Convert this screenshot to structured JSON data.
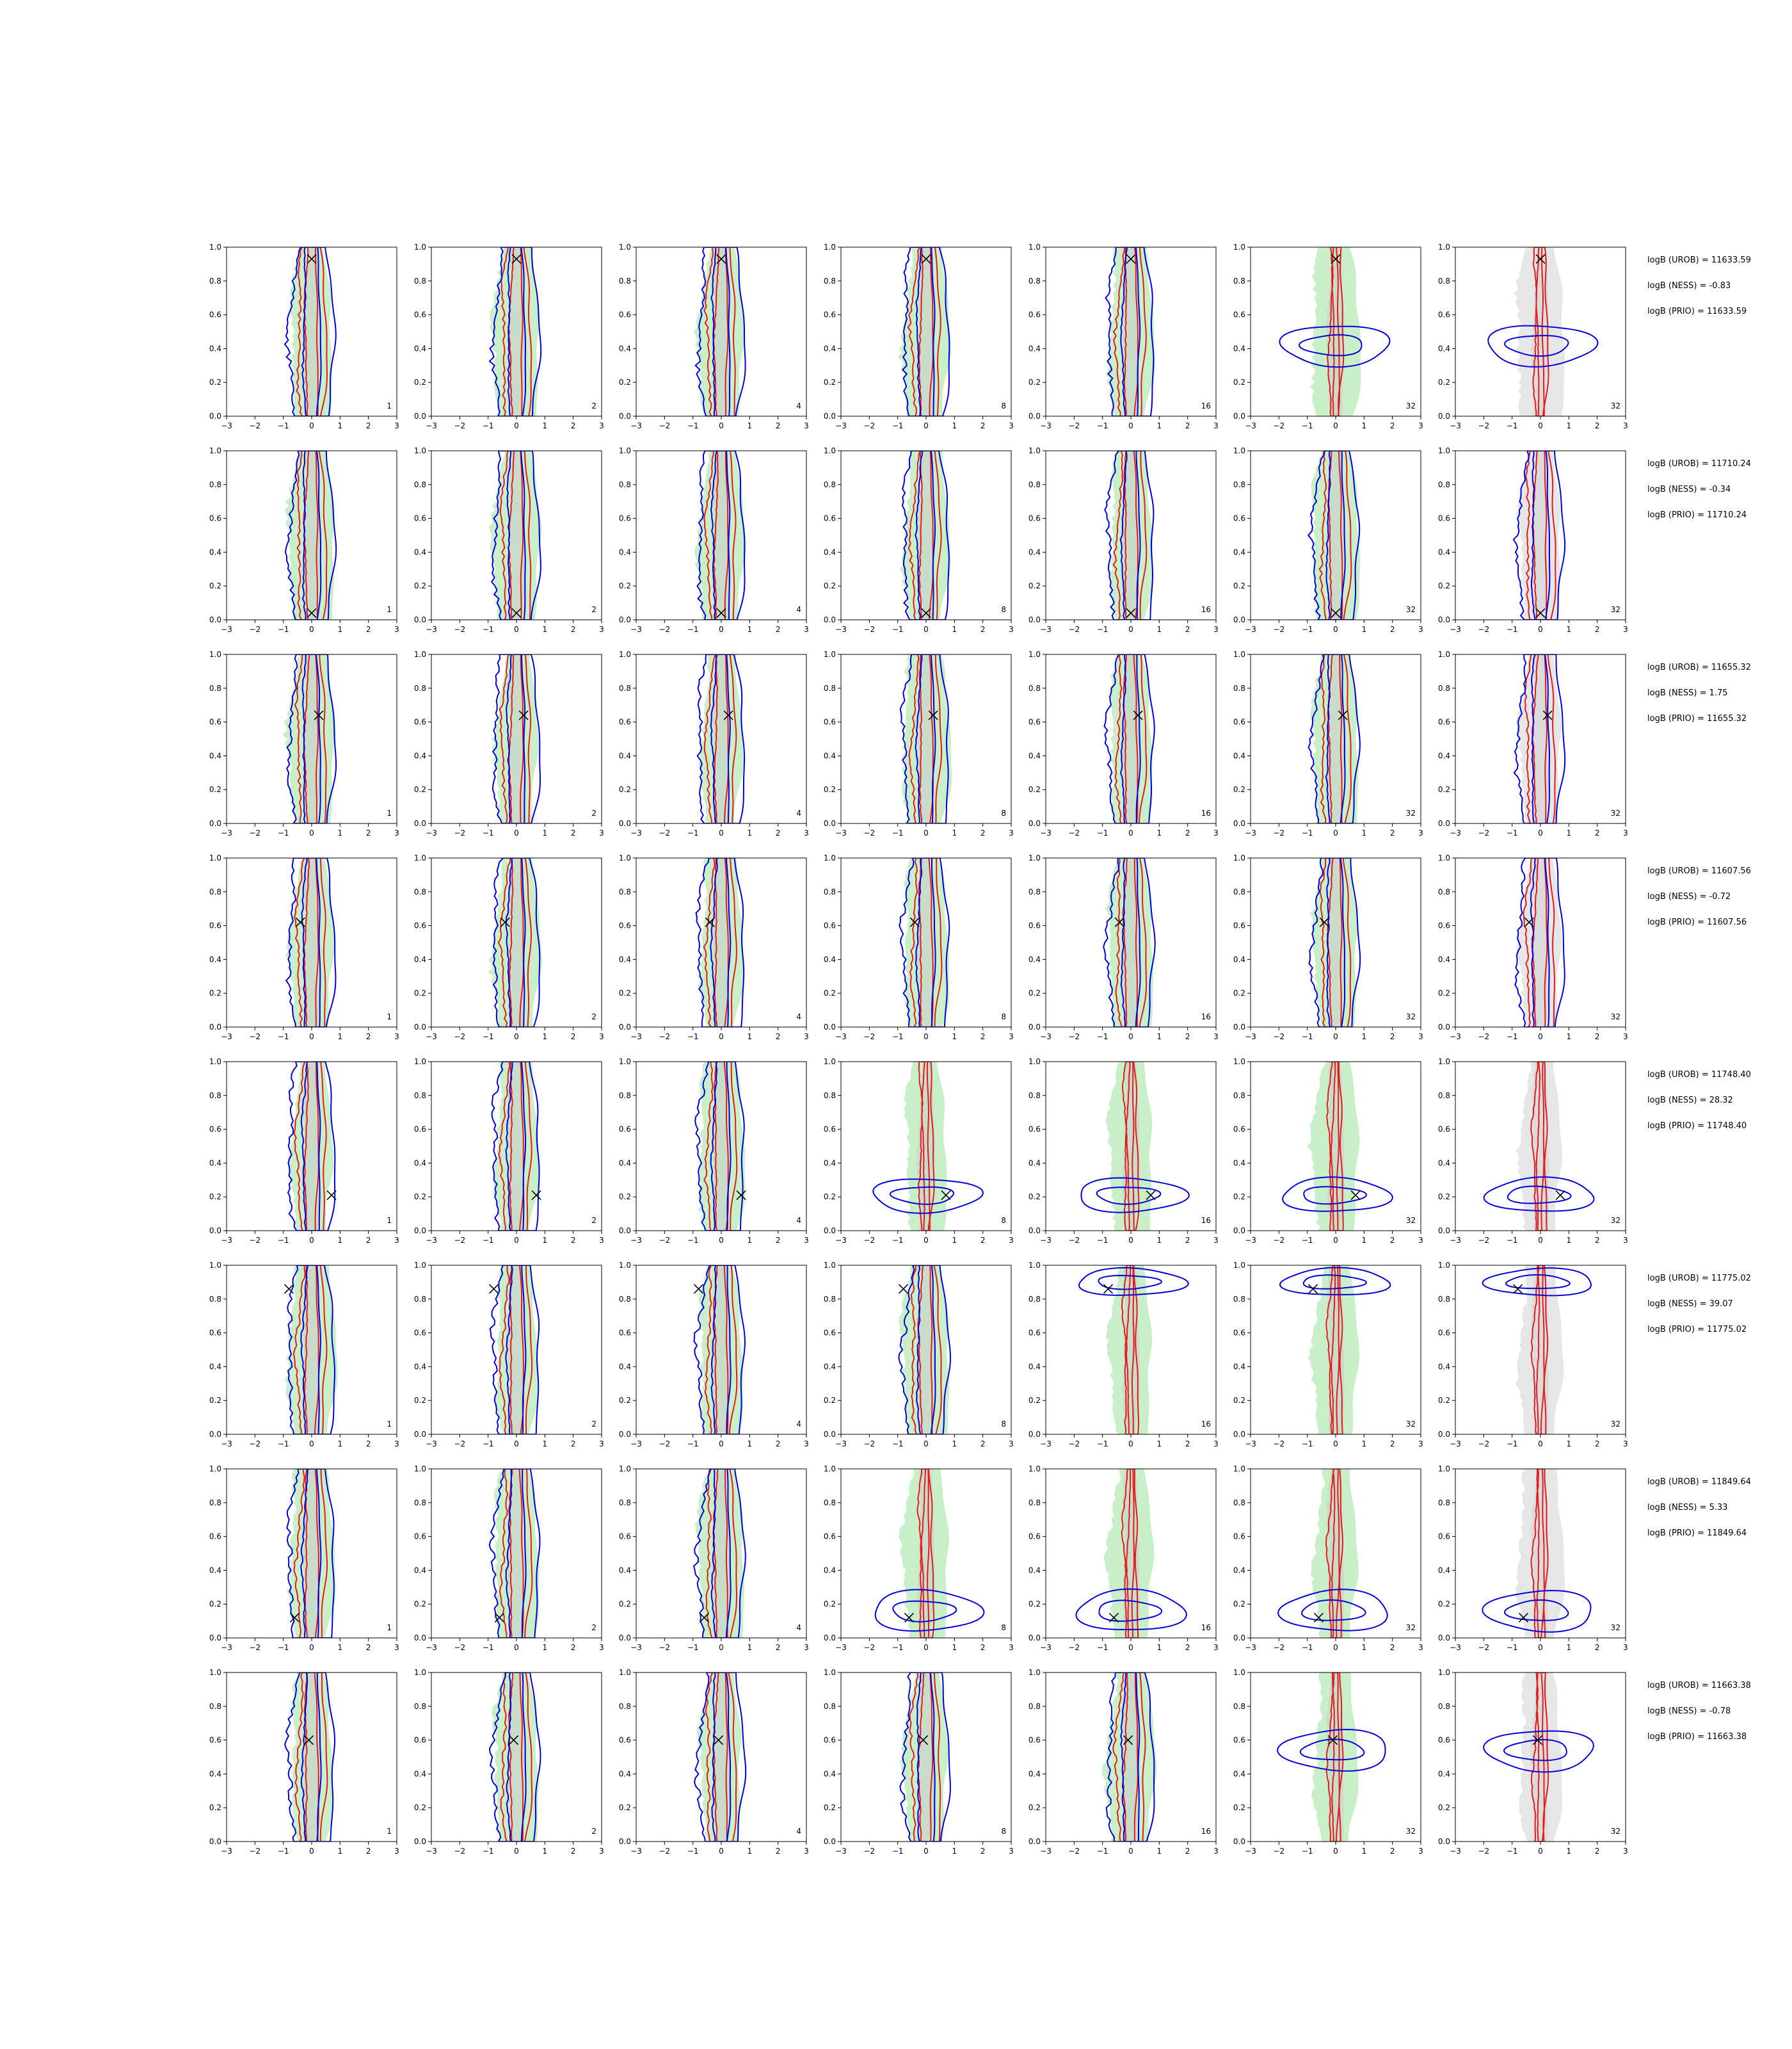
{
  "chart_data": {
    "type": "contour_grid",
    "layout": {
      "rows": 8,
      "cols": 7
    },
    "panel_labels": [
      "1",
      "2",
      "4",
      "8",
      "16",
      "32",
      "32"
    ],
    "xlim": [
      -3,
      3
    ],
    "ylim": [
      0.0,
      1.0
    ],
    "xticks": [
      "−3",
      "−2",
      "−1",
      "0",
      "1",
      "2",
      "3"
    ],
    "yticks": [
      "0.0",
      "0.2",
      "0.4",
      "0.6",
      "0.8",
      "1.0"
    ],
    "colors": {
      "proposal_fill": "#c8efc8",
      "proposal_fill_last": "#e6e6e6",
      "proposal_inner": "#c9d7c9",
      "red_contour": "#e41a1c",
      "blue_contour": "#0000dd",
      "marker": "#000000"
    },
    "rows": [
      {
        "truth": [
          0.0,
          0.93
        ],
        "horizontal_from_col": 5,
        "h_center_y": 0.42,
        "h_spread_y": 0.06,
        "logB": [
          "logB (UROB) = 11633.59",
          "logB (NESS) = -0.83",
          "logB (PRIO) = 11633.59"
        ]
      },
      {
        "truth": [
          0.0,
          0.04
        ],
        "horizontal_from_col": 99,
        "h_center_y": 0.5,
        "h_spread_y": 0.1,
        "logB": [
          "logB (UROB) = 11710.24",
          "logB (NESS) = -0.34",
          "logB (PRIO) = 11710.24"
        ]
      },
      {
        "truth": [
          0.25,
          0.64
        ],
        "horizontal_from_col": 99,
        "h_center_y": 0.64,
        "h_spread_y": 0.1,
        "logB": [
          "logB (UROB) = 11655.32",
          "logB (NESS) = 1.75",
          "logB (PRIO) = 11655.32"
        ]
      },
      {
        "truth": [
          -0.4,
          0.62
        ],
        "horizontal_from_col": 99,
        "h_center_y": 0.62,
        "h_spread_y": 0.1,
        "logB": [
          "logB (UROB) = 11607.56",
          "logB (NESS) = -0.72",
          "logB (PRIO) = 11607.56"
        ]
      },
      {
        "truth": [
          0.7,
          0.21
        ],
        "horizontal_from_col": 3,
        "h_center_y": 0.21,
        "h_spread_y": 0.05,
        "logB": [
          "logB (UROB) = 11748.40",
          "logB (NESS) = 28.32",
          "logB (PRIO) = 11748.40"
        ]
      },
      {
        "truth": [
          -0.8,
          0.86
        ],
        "horizontal_from_col": 4,
        "h_center_y": 0.9,
        "h_spread_y": 0.04,
        "logB": [
          "logB (UROB) = 11775.02",
          "logB (NESS) = 39.07",
          "logB (PRIO) = 11775.02"
        ]
      },
      {
        "truth": [
          -0.6,
          0.12
        ],
        "horizontal_from_col": 3,
        "h_center_y": 0.16,
        "h_spread_y": 0.06,
        "logB": [
          "logB (UROB) = 11849.64",
          "logB (NESS) = 5.33",
          "logB (PRIO) = 11849.64"
        ]
      },
      {
        "truth": [
          -0.1,
          0.6
        ],
        "horizontal_from_col": 5,
        "h_center_y": 0.54,
        "h_spread_y": 0.06,
        "logB": [
          "logB (UROB) = 11663.38",
          "logB (NESS) = -0.78",
          "logB (PRIO) = 11663.38"
        ]
      }
    ]
  }
}
